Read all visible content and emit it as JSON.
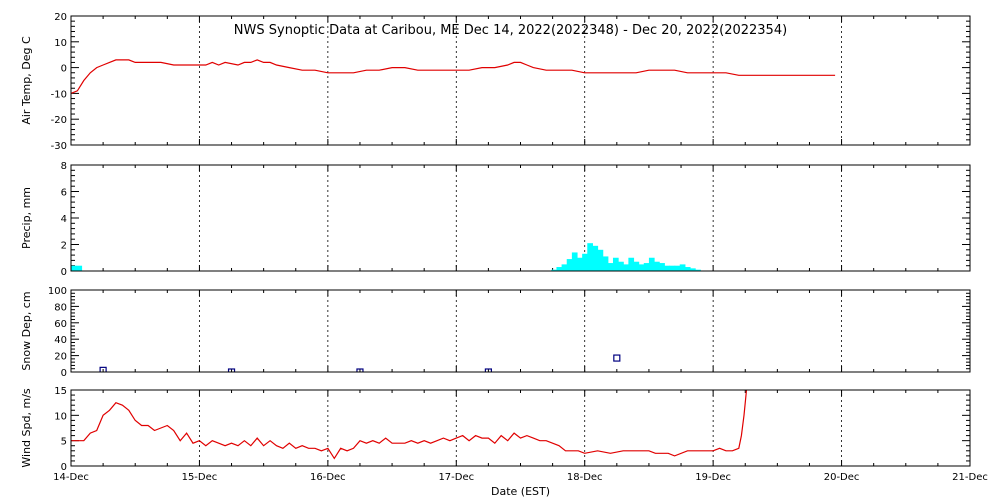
{
  "chart_data": {
    "title": "NWS Synoptic Data at Caribou, ME   Dec 14, 2022(2022348) - Dec 20, 2022(2022354)",
    "xlabel": "Date (EST)",
    "x_ticks": [
      "14-Dec",
      "15-Dec",
      "16-Dec",
      "17-Dec",
      "18-Dec",
      "19-Dec",
      "20-Dec",
      "21-Dec"
    ],
    "xlim_days": [
      0,
      7
    ],
    "panels": [
      {
        "type": "line",
        "ylabel": "Air Temp, Deg C",
        "ylim": [
          -30,
          20
        ],
        "yticks": [
          -30,
          -20,
          -10,
          0,
          10,
          20
        ],
        "color": "#e00000",
        "series": [
          {
            "x": [
              0,
              0.05,
              0.1,
              0.15,
              0.2,
              0.25,
              0.3,
              0.35,
              0.4,
              0.45,
              0.5,
              0.6,
              0.7,
              0.8,
              0.9,
              1.0,
              1.05,
              1.1,
              1.15,
              1.2,
              1.3,
              1.35,
              1.4,
              1.45,
              1.5,
              1.55,
              1.6,
              1.7,
              1.8,
              1.9,
              2.0,
              2.1,
              2.2,
              2.3,
              2.4,
              2.5,
              2.6,
              2.7,
              2.8,
              2.9,
              3.0,
              3.1,
              3.2,
              3.3,
              3.4,
              3.45,
              3.5,
              3.55,
              3.6,
              3.7,
              3.8,
              3.9,
              4.0,
              4.1,
              4.2,
              4.3,
              4.4,
              4.5,
              4.6,
              4.7,
              4.8,
              4.9,
              5.0,
              5.1,
              5.2,
              5.3,
              5.4,
              5.5,
              5.6,
              5.7,
              5.8,
              5.9,
              5.95
            ],
            "y": [
              -10,
              -9,
              -5,
              -2,
              0,
              1,
              2,
              3,
              3,
              3,
              2,
              2,
              2,
              1,
              1,
              1,
              1,
              2,
              1,
              2,
              1,
              2,
              2,
              3,
              2,
              2,
              1,
              0,
              -1,
              -1,
              -2,
              -2,
              -2,
              -1,
              -1,
              0,
              0,
              -1,
              -1,
              -1,
              -1,
              -1,
              0,
              0,
              1,
              2,
              2,
              1,
              0,
              -1,
              -1,
              -1,
              -2,
              -2,
              -2,
              -2,
              -2,
              -1,
              -1,
              -1,
              -2,
              -2,
              -2,
              -2,
              -3,
              -3,
              -3,
              -3,
              -3,
              -3,
              -3,
              -3,
              -3
            ]
          }
        ]
      },
      {
        "type": "bar",
        "ylabel": "Precip, mm",
        "ylim": [
          0,
          8
        ],
        "yticks": [
          0,
          2,
          4,
          6,
          8
        ],
        "color": "#00ffff",
        "bar_width_days": 0.042,
        "x": [
          0.0,
          0.042,
          3.74,
          3.78,
          3.82,
          3.86,
          3.9,
          3.94,
          3.98,
          4.02,
          4.06,
          4.1,
          4.14,
          4.18,
          4.22,
          4.26,
          4.3,
          4.34,
          4.38,
          4.42,
          4.46,
          4.5,
          4.54,
          4.58,
          4.62,
          4.66,
          4.7,
          4.74,
          4.78,
          4.82,
          4.86
        ],
        "values": [
          0.4,
          0.4,
          0.1,
          0.3,
          0.5,
          0.9,
          1.4,
          1.0,
          1.3,
          2.1,
          1.9,
          1.6,
          1.1,
          0.6,
          1.0,
          0.7,
          0.5,
          1.0,
          0.7,
          0.5,
          0.6,
          1.0,
          0.7,
          0.6,
          0.4,
          0.4,
          0.4,
          0.5,
          0.3,
          0.2,
          0.1
        ]
      },
      {
        "type": "scatter",
        "ylabel": "Snow Dep, cm",
        "ylim": [
          0,
          100
        ],
        "yticks": [
          0,
          20,
          40,
          60,
          80,
          100
        ],
        "color": "#000080",
        "x": [
          0.25,
          1.25,
          2.25,
          3.25,
          4.25
        ],
        "values": [
          2,
          0,
          0,
          0,
          17
        ]
      },
      {
        "type": "line",
        "ylabel": "Wind Spd, m/s",
        "ylim": [
          0,
          15
        ],
        "yticks": [
          0,
          5,
          10,
          15
        ],
        "color": "#e00000",
        "series": [
          {
            "x": [
              0,
              0.05,
              0.1,
              0.15,
              0.2,
              0.25,
              0.3,
              0.35,
              0.4,
              0.45,
              0.5,
              0.55,
              0.6,
              0.65,
              0.7,
              0.75,
              0.8,
              0.85,
              0.9,
              0.95,
              1.0,
              1.05,
              1.1,
              1.15,
              1.2,
              1.25,
              1.3,
              1.35,
              1.4,
              1.45,
              1.5,
              1.55,
              1.6,
              1.65,
              1.7,
              1.75,
              1.8,
              1.85,
              1.9,
              1.95,
              2.0,
              2.05,
              2.1,
              2.15,
              2.2,
              2.25,
              2.3,
              2.35,
              2.4,
              2.45,
              2.5,
              2.55,
              2.6,
              2.65,
              2.7,
              2.75,
              2.8,
              2.85,
              2.9,
              2.95,
              3.0,
              3.05,
              3.1,
              3.15,
              3.2,
              3.25,
              3.3,
              3.35,
              3.4,
              3.45,
              3.5,
              3.55,
              3.6,
              3.65,
              3.7,
              3.75,
              3.8,
              3.85,
              3.9,
              3.95,
              4.0,
              4.1,
              4.2,
              4.3,
              4.4,
              4.5,
              4.55,
              4.6,
              4.65,
              4.7,
              4.8,
              4.9,
              5.0,
              5.05,
              5.1,
              5.15,
              5.2,
              5.22,
              5.24,
              5.26
            ],
            "y": [
              5,
              5,
              5,
              6.5,
              7,
              10,
              11,
              12.5,
              12,
              11,
              9,
              8,
              8,
              7,
              7.5,
              8,
              7,
              5,
              6.5,
              4.5,
              5,
              4,
              5,
              4.5,
              4,
              4.5,
              4,
              5,
              4,
              5.5,
              4,
              5,
              4,
              3.5,
              4.5,
              3.5,
              4,
              3.5,
              3.5,
              3,
              3.5,
              1.5,
              3.5,
              3,
              3.5,
              5,
              4.5,
              5,
              4.5,
              5.5,
              4.5,
              4.5,
              4.5,
              5,
              4.5,
              5,
              4.5,
              5,
              5.5,
              5,
              5.5,
              6,
              5,
              6,
              5.5,
              5.5,
              4.5,
              6,
              5,
              6.5,
              5.5,
              6,
              5.5,
              5,
              5,
              4.5,
              4,
              3,
              3,
              3,
              2.5,
              3,
              2.5,
              3,
              3,
              3,
              2.5,
              2.5,
              2.5,
              2,
              3,
              3,
              3,
              3.5,
              3,
              3,
              3.5,
              6,
              10,
              15
            ]
          }
        ]
      }
    ]
  }
}
